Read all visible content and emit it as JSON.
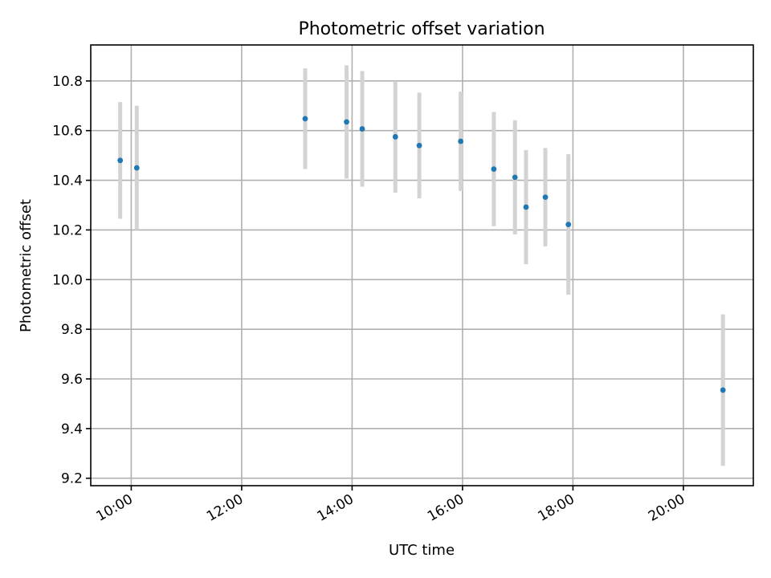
{
  "chart_data": {
    "type": "scatter",
    "title": "Photometric offset variation",
    "xlabel": "UTC time",
    "ylabel": "Photometric offset",
    "x_ticks": [
      "10:00",
      "12:00",
      "14:00",
      "16:00",
      "18:00",
      "20:00"
    ],
    "y_ticks": [
      "9.2",
      "9.4",
      "9.6",
      "9.8",
      "10.0",
      "10.2",
      "10.4",
      "10.6",
      "10.8"
    ],
    "xlim": [
      "09:16",
      "21:16"
    ],
    "ylim": [
      9.17,
      10.945
    ],
    "grid": true,
    "colors": {
      "point": "#1f77b4",
      "errorbar": "#d3d3d3"
    },
    "points": [
      {
        "x": "09:48",
        "y": 10.48,
        "yerr": 0.235
      },
      {
        "x": "10:06",
        "y": 10.45,
        "yerr": 0.25
      },
      {
        "x": "13:09",
        "y": 10.648,
        "yerr": 0.203
      },
      {
        "x": "13:54",
        "y": 10.635,
        "yerr": 0.228
      },
      {
        "x": "14:11",
        "y": 10.607,
        "yerr": 0.233
      },
      {
        "x": "14:47",
        "y": 10.575,
        "yerr": 0.225
      },
      {
        "x": "15:13",
        "y": 10.54,
        "yerr": 0.213
      },
      {
        "x": "15:58",
        "y": 10.557,
        "yerr": 0.2
      },
      {
        "x": "16:34",
        "y": 10.445,
        "yerr": 0.23
      },
      {
        "x": "16:57",
        "y": 10.412,
        "yerr": 0.23
      },
      {
        "x": "17:09",
        "y": 10.292,
        "yerr": 0.23
      },
      {
        "x": "17:30",
        "y": 10.332,
        "yerr": 0.198
      },
      {
        "x": "17:55",
        "y": 10.222,
        "yerr": 0.283
      },
      {
        "x": "20:43",
        "y": 9.555,
        "yerr": 0.305
      }
    ]
  }
}
